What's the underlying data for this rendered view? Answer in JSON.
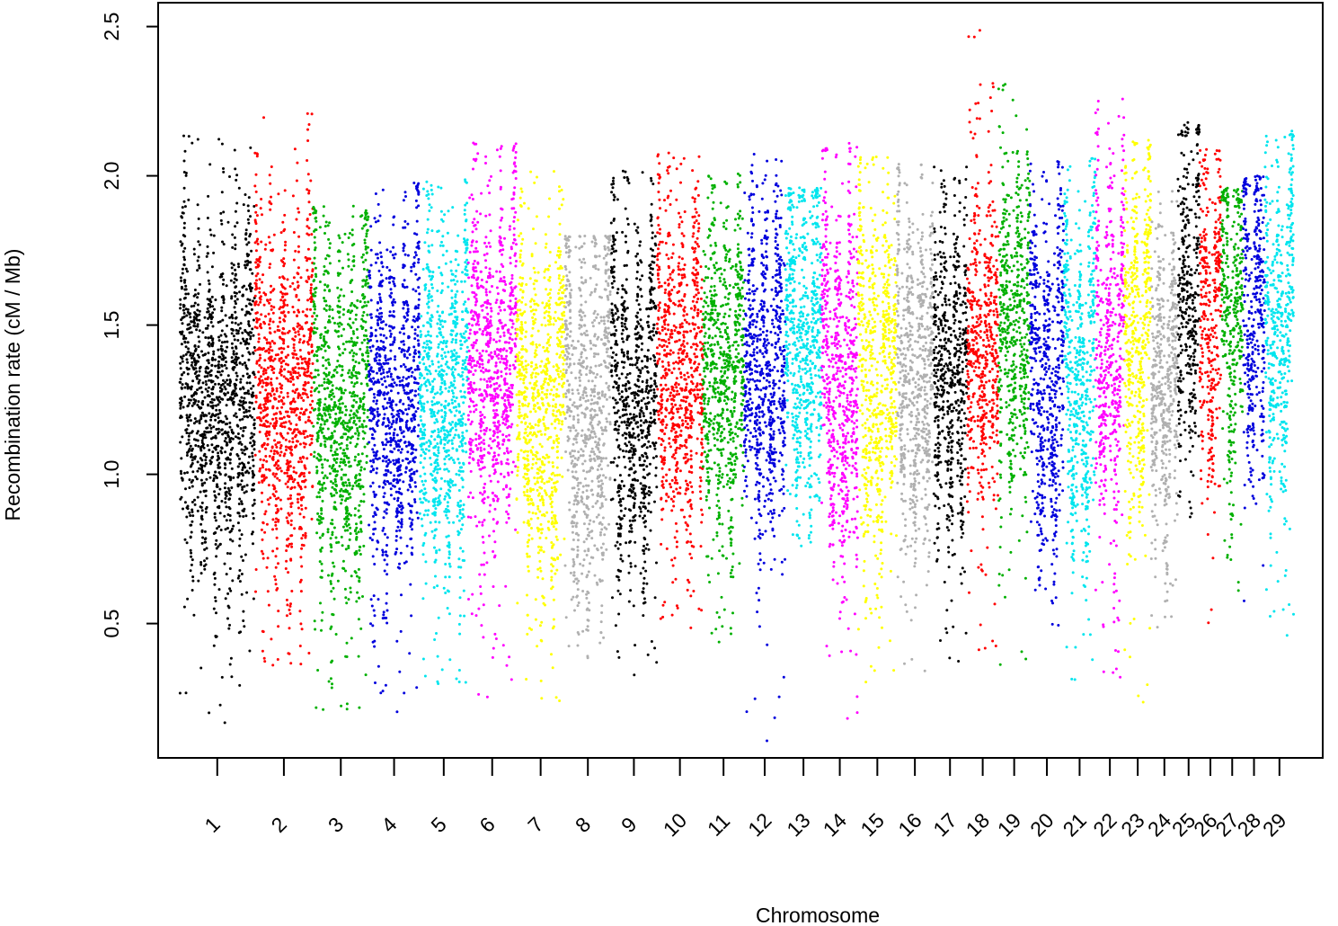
{
  "chart_data": {
    "type": "scatter",
    "title": "",
    "xlabel": "Chromosome",
    "ylabel": "Recombination rate (cM / Mb)",
    "ylim": [
      0.05,
      2.58
    ],
    "yticks": [
      0.5,
      1.0,
      1.5,
      2.0,
      2.5
    ],
    "ytick_labels": [
      "0.5",
      "1.0",
      "1.5",
      "2.0",
      "2.5"
    ],
    "grid": false,
    "legend": "none",
    "x_unit": "genome position (chromosomes laid end to end)",
    "chromosomes": [
      {
        "label": "1",
        "color": "#000000",
        "start": 0.0,
        "end": 1.55,
        "ytop": 2.14,
        "ybottom": 0.15,
        "mean": 1.2
      },
      {
        "label": "2",
        "color": "#ff0000",
        "start": 1.55,
        "end": 2.75,
        "ytop": 2.22,
        "ybottom": 0.36,
        "mean": 1.2
      },
      {
        "label": "3",
        "color": "#00b000",
        "start": 2.75,
        "end": 3.9,
        "ytop": 1.9,
        "ybottom": 0.21,
        "mean": 1.15
      },
      {
        "label": "4",
        "color": "#0000dd",
        "start": 3.9,
        "end": 4.95,
        "ytop": 1.98,
        "ybottom": 0.18,
        "mean": 1.2
      },
      {
        "label": "5",
        "color": "#00e5ee",
        "start": 4.95,
        "end": 5.95,
        "ytop": 1.99,
        "ybottom": 0.27,
        "mean": 1.2
      },
      {
        "label": "6",
        "color": "#ff00ff",
        "start": 5.95,
        "end": 6.95,
        "ytop": 2.12,
        "ybottom": 0.25,
        "mean": 1.3
      },
      {
        "label": "7",
        "color": "#ffff00",
        "start": 6.95,
        "end": 7.95,
        "ytop": 2.02,
        "ybottom": 0.22,
        "mean": 1.15
      },
      {
        "label": "8",
        "color": "#b0b0b0",
        "start": 7.95,
        "end": 8.9,
        "ytop": 1.8,
        "ybottom": 0.38,
        "mean": 1.15
      },
      {
        "label": "9",
        "color": "#000000",
        "start": 8.9,
        "end": 9.85,
        "ytop": 2.02,
        "ybottom": 0.31,
        "mean": 1.2
      },
      {
        "label": "10",
        "color": "#ff0000",
        "start": 9.85,
        "end": 10.8,
        "ytop": 2.08,
        "ybottom": 0.46,
        "mean": 1.3
      },
      {
        "label": "11",
        "color": "#00b000",
        "start": 10.8,
        "end": 11.65,
        "ytop": 2.01,
        "ybottom": 0.41,
        "mean": 1.3
      },
      {
        "label": "12",
        "color": "#0000dd",
        "start": 11.65,
        "end": 12.5,
        "ytop": 2.08,
        "ybottom": 0.1,
        "mean": 1.3
      },
      {
        "label": "13",
        "color": "#00e5ee",
        "start": 12.5,
        "end": 13.25,
        "ytop": 1.96,
        "ybottom": 0.75,
        "mean": 1.4
      },
      {
        "label": "14",
        "color": "#ff00ff",
        "start": 13.25,
        "end": 14.0,
        "ytop": 2.12,
        "ybottom": 0.17,
        "mean": 1.25
      },
      {
        "label": "15",
        "color": "#ffff00",
        "start": 14.0,
        "end": 14.8,
        "ytop": 2.07,
        "ybottom": 0.3,
        "mean": 1.3
      },
      {
        "label": "16",
        "color": "#b0b0b0",
        "start": 14.8,
        "end": 15.55,
        "ytop": 2.04,
        "ybottom": 0.3,
        "mean": 1.25
      },
      {
        "label": "17",
        "color": "#000000",
        "start": 15.55,
        "end": 16.25,
        "ytop": 2.03,
        "ybottom": 0.37,
        "mean": 1.3
      },
      {
        "label": "18",
        "color": "#ff0000",
        "start": 16.25,
        "end": 16.9,
        "ytop": 2.51,
        "ybottom": 0.34,
        "mean": 1.4
      },
      {
        "label": "19",
        "color": "#00b000",
        "start": 16.9,
        "end": 17.55,
        "ytop": 2.33,
        "ybottom": 0.35,
        "mean": 1.45
      },
      {
        "label": "20",
        "color": "#0000dd",
        "start": 17.55,
        "end": 18.25,
        "ytop": 2.06,
        "ybottom": 0.48,
        "mean": 1.25
      },
      {
        "label": "21",
        "color": "#00e5ee",
        "start": 18.25,
        "end": 18.9,
        "ytop": 2.06,
        "ybottom": 0.2,
        "mean": 1.25
      },
      {
        "label": "22",
        "color": "#ff00ff",
        "start": 18.9,
        "end": 19.5,
        "ytop": 2.26,
        "ybottom": 0.27,
        "mean": 1.35
      },
      {
        "label": "23",
        "color": "#ffff00",
        "start": 19.5,
        "end": 20.05,
        "ytop": 2.12,
        "ybottom": 0.12,
        "mean": 1.4
      },
      {
        "label": "24",
        "color": "#b0b0b0",
        "start": 20.05,
        "end": 20.6,
        "ytop": 1.95,
        "ybottom": 0.4,
        "mean": 1.25
      },
      {
        "label": "25",
        "color": "#000000",
        "start": 20.6,
        "end": 21.05,
        "ytop": 2.18,
        "ybottom": 0.85,
        "mean": 1.55
      },
      {
        "label": "26",
        "color": "#ff0000",
        "start": 21.05,
        "end": 21.5,
        "ytop": 2.09,
        "ybottom": 0.48,
        "mean": 1.45
      },
      {
        "label": "27",
        "color": "#00b000",
        "start": 21.5,
        "end": 21.95,
        "ytop": 1.96,
        "ybottom": 0.6,
        "mean": 1.45
      },
      {
        "label": "28",
        "color": "#0000dd",
        "start": 21.95,
        "end": 22.4,
        "ytop": 2.0,
        "ybottom": 0.51,
        "mean": 1.5
      },
      {
        "label": "29",
        "color": "#00e5ee",
        "start": 22.4,
        "end": 23.0,
        "ytop": 2.15,
        "ybottom": 0.44,
        "mean": 1.45
      }
    ]
  }
}
